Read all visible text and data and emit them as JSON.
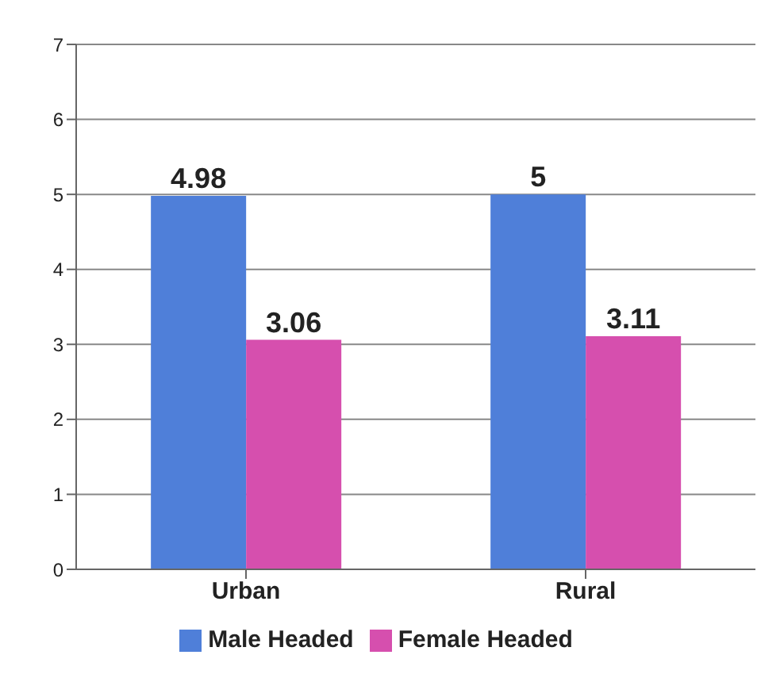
{
  "chart_data": {
    "type": "bar",
    "categories": [
      "Urban",
      "Rural"
    ],
    "series": [
      {
        "name": "Male Headed",
        "color": "#4f7fd9",
        "values": [
          4.98,
          5
        ]
      },
      {
        "name": "Female Headed",
        "color": "#d64fae",
        "values": [
          3.06,
          3.11
        ]
      }
    ],
    "ylim": [
      0,
      7
    ],
    "yticks": [
      0,
      1,
      2,
      3,
      4,
      5,
      6,
      7
    ],
    "grid": "y",
    "legend": "bottom",
    "data_labels": true
  }
}
